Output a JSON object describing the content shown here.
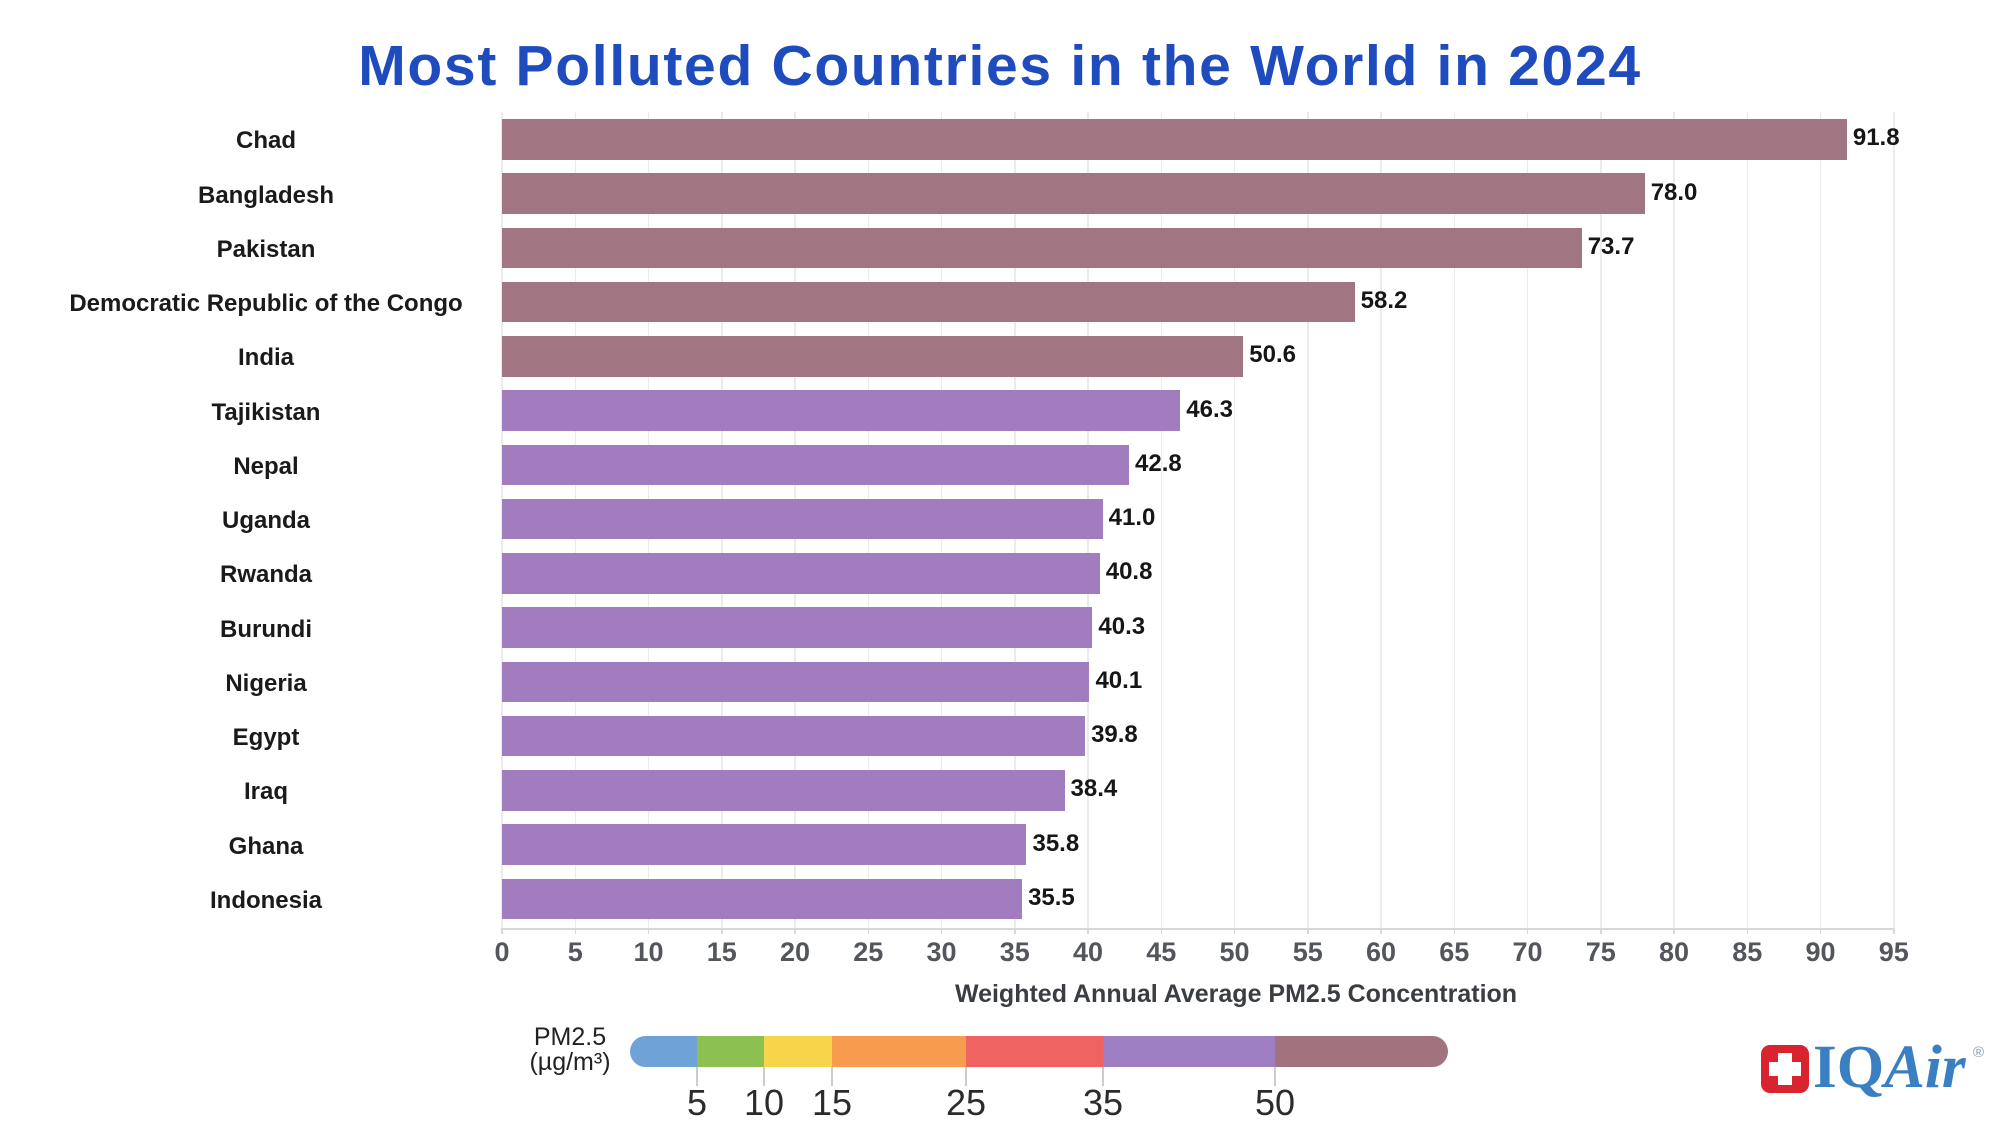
{
  "chart_data": {
    "type": "bar",
    "orientation": "horizontal",
    "title": "Most Polluted Countries in the World in 2024",
    "xlabel": "Weighted Annual Average PM2.5 Concentration",
    "categories": [
      "Chad",
      "Bangladesh",
      "Pakistan",
      "Democratic Republic of the Congo",
      "India",
      "Tajikistan",
      "Nepal",
      "Uganda",
      "Rwanda",
      "Burundi",
      "Nigeria",
      "Egypt",
      "Iraq",
      "Ghana",
      "Indonesia"
    ],
    "values": [
      91.8,
      78.0,
      73.7,
      58.2,
      50.6,
      46.3,
      42.8,
      41.0,
      40.8,
      40.3,
      40.1,
      39.8,
      38.4,
      35.8,
      35.5
    ],
    "value_labels": [
      "91.8",
      "78.0",
      "73.7",
      "58.2",
      "50.6",
      "46.3",
      "42.8",
      "41.0",
      "40.8",
      "40.3",
      "40.1",
      "39.8",
      "38.4",
      "35.8",
      "35.5"
    ],
    "xticks": [
      0,
      5,
      10,
      15,
      20,
      25,
      30,
      35,
      40,
      45,
      50,
      55,
      60,
      65,
      70,
      75,
      80,
      85,
      90,
      95
    ],
    "xlim": [
      0,
      97.5
    ],
    "grid": true,
    "bar_color_rule": {
      "threshold": 50,
      "above_color": "#a17682",
      "below_color": "#a17dc0"
    }
  },
  "legend": {
    "label_line1": "PM2.5",
    "label_line2": "(µg/m³)",
    "segments": [
      {
        "to": 5,
        "color": "#6fa3d8"
      },
      {
        "to": 10,
        "color": "#8cc152"
      },
      {
        "to": 15,
        "color": "#f8d44b"
      },
      {
        "to": 25,
        "color": "#f79b4e"
      },
      {
        "to": 35,
        "color": "#ef6462"
      },
      {
        "to": 50,
        "color": "#9f7fc4"
      },
      {
        "to": 63,
        "color": "#a0737f"
      }
    ],
    "ticks": [
      "5",
      "10",
      "15",
      "25",
      "35",
      "50"
    ]
  },
  "logo": {
    "text_iq": "IQ",
    "text_air": "Air",
    "reg": "®"
  }
}
